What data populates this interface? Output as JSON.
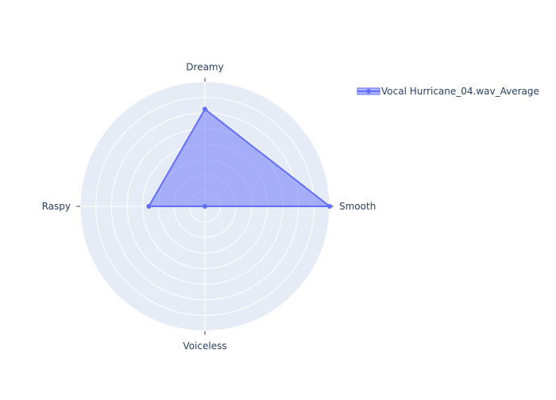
{
  "chart_data": {
    "type": "radar",
    "axes": [
      "Dreamy",
      "Smooth",
      "Voiceless",
      "Raspy"
    ],
    "series": [
      {
        "name": "Vocal Hurricane_04.wav_Average",
        "values": [
          0.78,
          1.0,
          0.0,
          0.45
        ]
      }
    ],
    "radial_range": [
      0,
      1
    ],
    "grid": true,
    "legend": "top-right",
    "colors": {
      "line": "#636efa",
      "fill": "rgba(99,110,250,0.5)",
      "polar_bg": "#e5ecf6",
      "grid": "#ffffff",
      "text": "#2a3f5f"
    }
  }
}
